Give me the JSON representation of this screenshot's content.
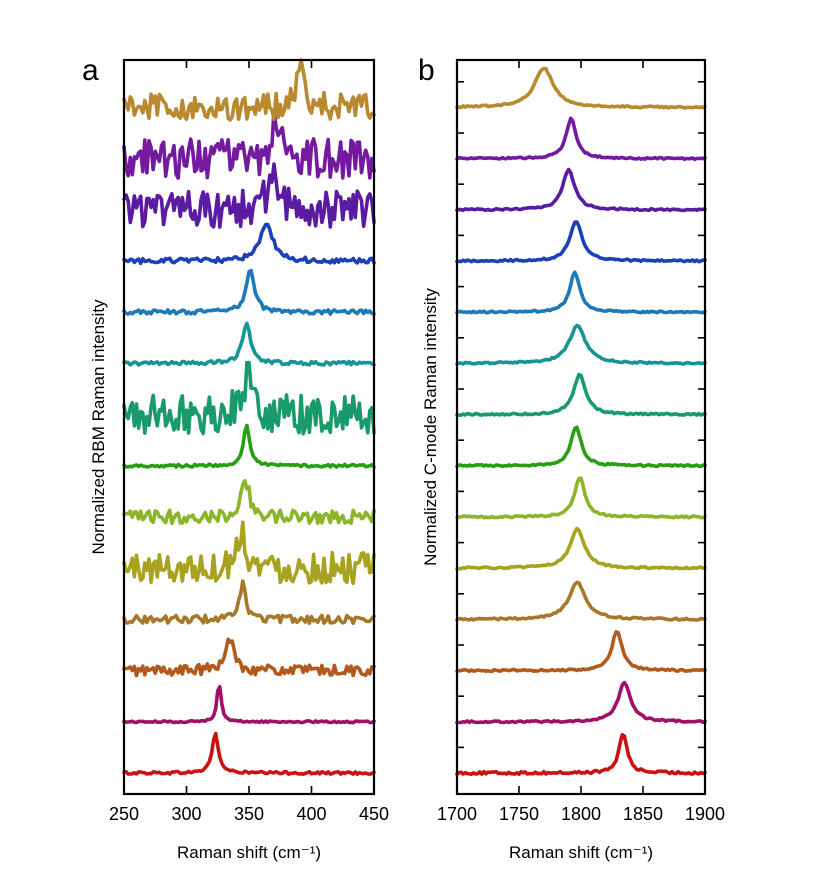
{
  "colors": {
    "trace_colors": [
      "#cc1111",
      "#a01068",
      "#b25a1c",
      "#a8782a",
      "#a7a21f",
      "#8db52a",
      "#289e12",
      "#189a6a",
      "#179494",
      "#1c7ab8",
      "#1b40b8",
      "#5a1aa2",
      "#731aa0",
      "#b8892f"
    ]
  },
  "chart_data": [
    {
      "type": "line",
      "panel_label": "a",
      "xlabel": "Raman shift (cm⁻¹)",
      "ylabel": "Normalized RBM Raman intensity",
      "xlim": [
        250,
        450
      ],
      "x_ticks": [
        250,
        300,
        350,
        400,
        450
      ],
      "y_ticks_visible": false,
      "offset": true,
      "series": [
        {
          "peak": 323,
          "width": 3,
          "noise": 0.03,
          "height": 0.9
        },
        {
          "peak": 326,
          "width": 2,
          "noise": 0.02,
          "height": 0.9
        },
        {
          "peak": 335,
          "width": 4,
          "noise": 0.12,
          "height": 0.75
        },
        {
          "peak": 345,
          "width": 3,
          "noise": 0.09,
          "height": 0.8
        },
        {
          "peak": 344,
          "width": 4,
          "noise": 0.35,
          "height": 0.9
        },
        {
          "peak": 347,
          "width": 4,
          "noise": 0.15,
          "height": 0.85
        },
        {
          "peak": 348,
          "width": 3,
          "noise": 0.03,
          "height": 0.9
        },
        {
          "peak": 349,
          "width": 5,
          "noise": 0.45,
          "height": 0.9
        },
        {
          "peak": 348,
          "width": 4,
          "noise": 0.04,
          "height": 0.9
        },
        {
          "peak": 351,
          "width": 4,
          "noise": 0.05,
          "height": 0.95
        },
        {
          "peak": 364,
          "width": 6,
          "noise": 0.06,
          "height": 0.85
        },
        {
          "peak": 368,
          "width": 4,
          "noise": 0.42,
          "height": 0.85
        },
        {
          "peak": 372,
          "width": 4,
          "noise": 0.45,
          "height": 0.85
        },
        {
          "peak": 391,
          "width": 4,
          "noise": 0.3,
          "height": 0.85
        }
      ]
    },
    {
      "type": "line",
      "panel_label": "b",
      "xlabel": "Raman shift (cm⁻¹)",
      "ylabel": "Normalized C-mode Raman intensity",
      "xlim": [
        1700,
        1900
      ],
      "x_ticks": [
        1700,
        1750,
        1800,
        1850,
        1900
      ],
      "y_ticks_visible": false,
      "offset": true,
      "series": [
        {
          "peak": 1834,
          "width": 4,
          "noise": 0.03,
          "height": 0.9
        },
        {
          "peak": 1835,
          "width": 6,
          "noise": 0.02,
          "height": 0.9
        },
        {
          "peak": 1829,
          "width": 5,
          "noise": 0.02,
          "height": 0.9
        },
        {
          "peak": 1797,
          "width": 8,
          "noise": 0.02,
          "height": 0.85
        },
        {
          "peak": 1797,
          "width": 7,
          "noise": 0.02,
          "height": 0.9
        },
        {
          "peak": 1799,
          "width": 5,
          "noise": 0.02,
          "height": 0.9
        },
        {
          "peak": 1796,
          "width": 5,
          "noise": 0.02,
          "height": 0.9
        },
        {
          "peak": 1799,
          "width": 6,
          "noise": 0.02,
          "height": 0.9
        },
        {
          "peak": 1797,
          "width": 8,
          "noise": 0.02,
          "height": 0.85
        },
        {
          "peak": 1795,
          "width": 5,
          "noise": 0.02,
          "height": 0.9
        },
        {
          "peak": 1796,
          "width": 6,
          "noise": 0.02,
          "height": 0.9
        },
        {
          "peak": 1790,
          "width": 6,
          "noise": 0.02,
          "height": 0.9
        },
        {
          "peak": 1792,
          "width": 5,
          "noise": 0.02,
          "height": 0.9
        },
        {
          "peak": 1770,
          "width": 9,
          "noise": 0.02,
          "height": 0.9
        }
      ]
    }
  ]
}
